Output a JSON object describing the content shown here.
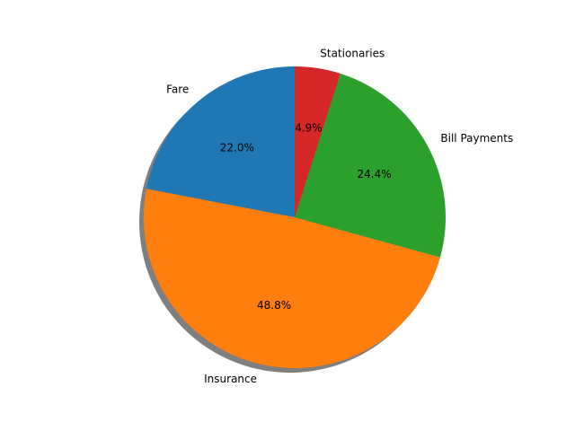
{
  "chart_data": {
    "type": "pie",
    "categories": [
      "Fare",
      "Insurance",
      "Bill Payments",
      "Stationaries"
    ],
    "values": [
      22.0,
      48.8,
      24.4,
      4.9
    ],
    "percent_labels": [
      "22.0%",
      "48.8%",
      "24.4%",
      "4.9%"
    ],
    "colors": [
      "#1f77b4",
      "#ff7f0e",
      "#2ca02c",
      "#d62728"
    ],
    "start_angle_deg": 90,
    "direction": "counterclockwise",
    "shadow": true,
    "title": ""
  }
}
